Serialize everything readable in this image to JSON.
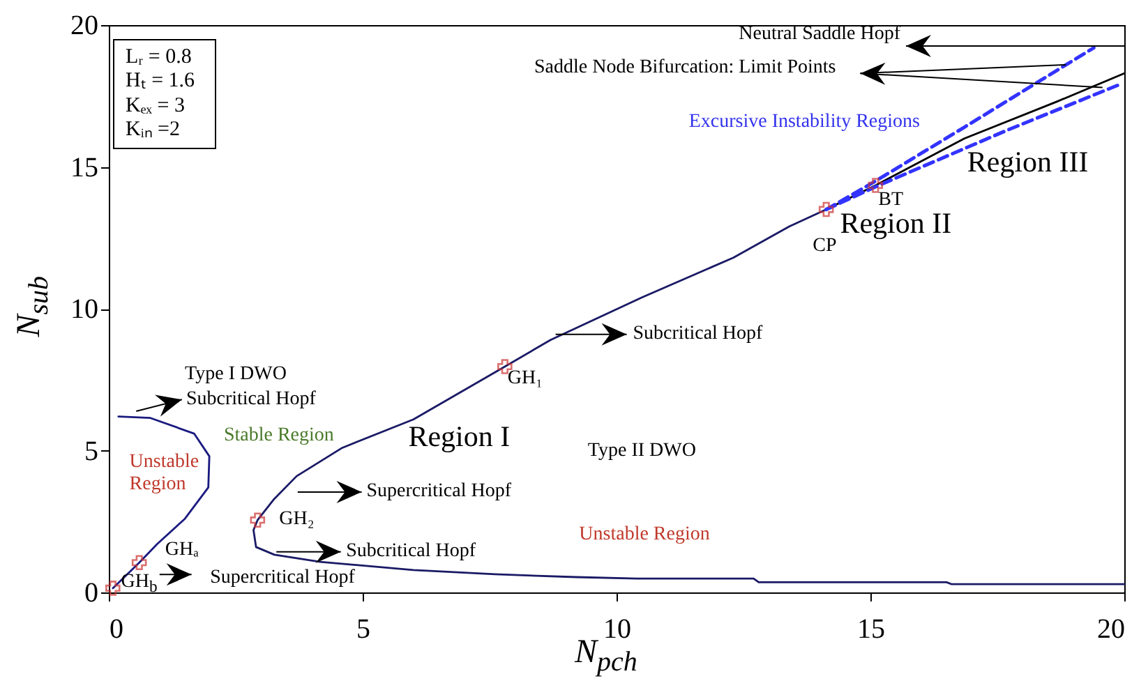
{
  "chart_data": {
    "type": "line",
    "xlabel": "N$_{pch}$",
    "ylabel": "N$_{sub}$",
    "xlim": [
      0,
      20
    ],
    "ylim": [
      0,
      20
    ],
    "xticks": [
      0,
      5,
      10,
      15,
      20
    ],
    "yticks": [
      0,
      5,
      10,
      15,
      20
    ],
    "grid": false,
    "series": [
      {
        "color": "#1a1a80",
        "line_style": "solid",
        "x": [
          0.19,
          0.82,
          1.68,
          1.98,
          1.96,
          1.5,
          0.95,
          0.6,
          0.08
        ],
        "values": [
          6.2,
          6.15,
          5.6,
          4.8,
          3.7,
          2.6,
          1.7,
          1.05,
          0.15
        ]
      },
      {
        "color": "#1a1a66",
        "line_style": "solid",
        "x": [
          20,
          16.6,
          16.5,
          12.8,
          12.7,
          10.4,
          9.2,
          7.6,
          6.0,
          4.16,
          3.26,
          2.9,
          2.85,
          2.93,
          3.26,
          3.7,
          4.6,
          6.0,
          7.8,
          8.7,
          10.5,
          12.3,
          13.4,
          14.13
        ],
        "values": [
          0.29,
          0.29,
          0.36,
          0.36,
          0.49,
          0.49,
          0.54,
          0.64,
          0.79,
          1.08,
          1.33,
          1.6,
          2.2,
          2.55,
          3.3,
          4.1,
          5.1,
          6.1,
          7.96,
          8.9,
          10.4,
          11.8,
          12.9,
          13.5
        ]
      },
      {
        "color": "#000000",
        "line_style": "solid",
        "x": [
          14.13,
          15.1,
          16.85,
          18.67,
          20
        ],
        "values": [
          13.5,
          14.35,
          16.0,
          17.3,
          18.3
        ]
      },
      {
        "color": "#3333ff",
        "line_style": "dashed",
        "x": [
          14.13,
          15.1,
          16.85,
          19.4
        ],
        "values": [
          13.5,
          14.5,
          16.4,
          19.2
        ]
      },
      {
        "color": "#3333ff",
        "line_style": "dashed",
        "x": [
          14.13,
          15.1,
          17.7,
          19.9
        ],
        "values": [
          13.5,
          14.3,
          16.3,
          17.9
        ]
      },
      {
        "type": "scatter",
        "color": "#cc3333",
        "marker": "cross",
        "x": [
          0.08,
          0.6,
          2.93,
          7.8,
          14.13,
          15.1
        ],
        "values": [
          0.15,
          1.05,
          2.55,
          7.96,
          13.5,
          14.35
        ]
      }
    ],
    "annotations": [
      "Type I DWO",
      "Subcritical Hopf",
      "Stable Region",
      "Unstable\nRegion",
      "GHₐ",
      "GH$_{b}$",
      "Supercritical Hopf",
      "GH₂",
      "Supercritical Hopf",
      "Subcritical Hopf",
      "GH₁",
      "Region I",
      "Type II DWO",
      "Unstable Region",
      "Subcritical Hopf",
      "CP",
      "BT",
      "Region II",
      "Region III",
      "Excursive Instability Regions",
      "Neutral Saddle Hopf",
      {
        "text": "Saddle Node Bifurcation: Limit Points",
        "x": 18.85,
        "y": 18.6
      },
      "Lᵣ = 0.8",
      "Hₜ = 1.6",
      "Kₑₓ = 3",
      "Kᵢₙ =2"
    ]
  }
}
